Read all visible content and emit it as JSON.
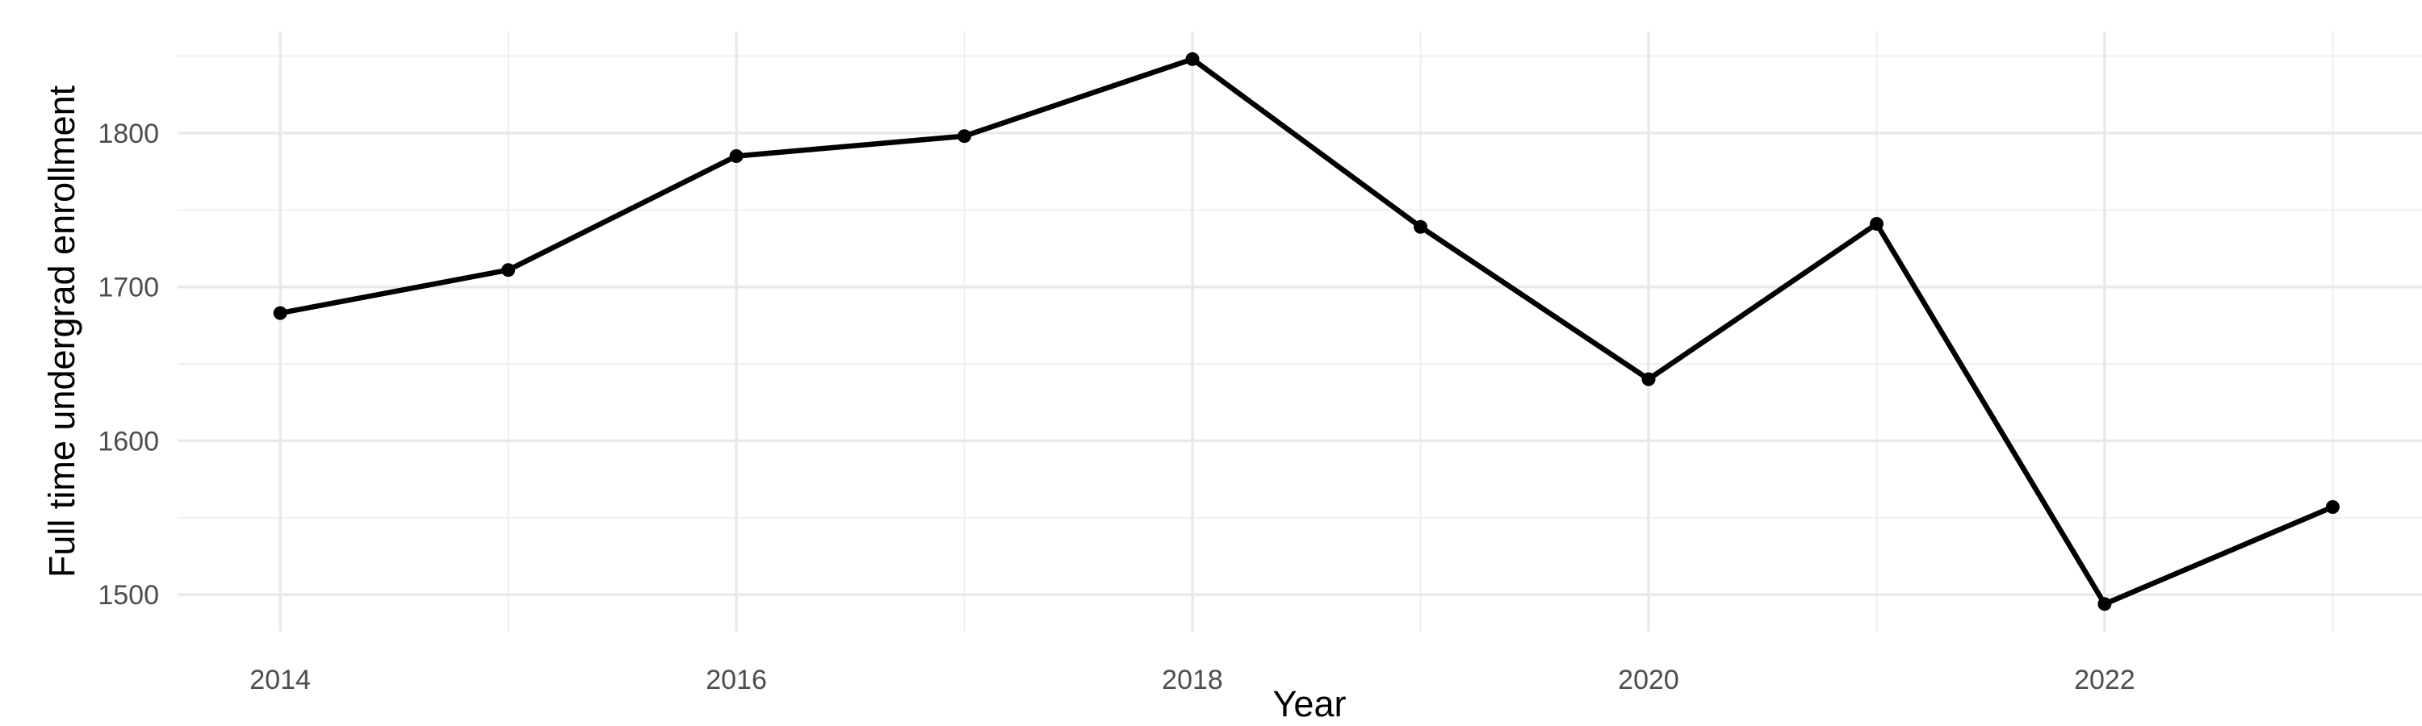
{
  "chart_data": {
    "type": "line",
    "title": "",
    "xlabel": "Year",
    "ylabel": "Full time undergrad enrollment",
    "x": [
      2014,
      2015,
      2016,
      2017,
      2018,
      2019,
      2020,
      2021,
      2022,
      2023
    ],
    "series": [
      {
        "name": "Full time undergrad enrollment",
        "values": [
          1683,
          1711,
          1785,
          1798,
          1848,
          1739,
          1640,
          1741,
          1494,
          1557
        ]
      }
    ],
    "xlim": [
      2013.55,
      2023.48
    ],
    "ylim": [
      1476,
      1866
    ],
    "x_major_ticks": [
      2014,
      2016,
      2018,
      2020,
      2022
    ],
    "x_major_labels": [
      "2014",
      "2016",
      "2018",
      "2020",
      "2022"
    ],
    "x_minor_ticks": [
      2015,
      2017,
      2019,
      2021,
      2023
    ],
    "y_major_ticks": [
      1500,
      1600,
      1700,
      1800
    ],
    "y_major_labels": [
      "1500",
      "1600",
      "1700",
      "1800"
    ],
    "y_minor_ticks": [
      1550,
      1650,
      1750,
      1850
    ],
    "grid": "major-and-minor",
    "legend": "none",
    "colors": {
      "line": "#000000",
      "point": "#000000",
      "grid_major": "#E9E9E9",
      "grid_minor": "#F0F0F0",
      "tick_label": "#4D4D4D",
      "axis_title": "#000000",
      "background": "#FFFFFF"
    }
  }
}
